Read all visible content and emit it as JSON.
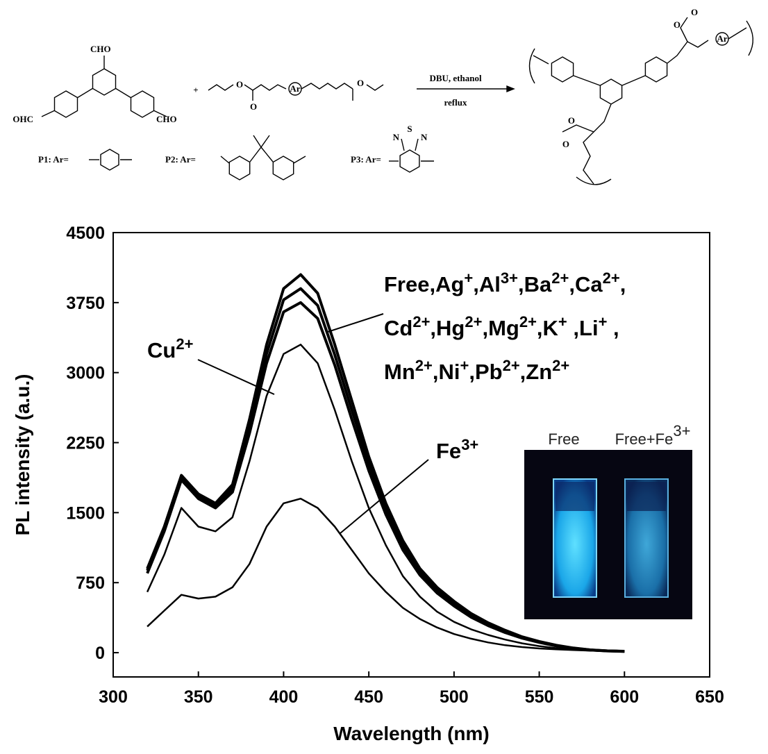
{
  "scheme": {
    "reagent_labels": [
      "CHO",
      "OHC",
      "CHO"
    ],
    "plus": "+",
    "ar": "Ar",
    "conditions": [
      "DBU, ethanol",
      "reflux"
    ],
    "variants": [
      "P1: Ar=",
      "P2: Ar=",
      "P3: Ar="
    ],
    "atoms": [
      "S",
      "N",
      "N",
      "O"
    ]
  },
  "chart_data": {
    "type": "line",
    "x_label": "Wavelength (nm)",
    "y_label": "PL intensity (a.u.)",
    "x": [
      320,
      330,
      340,
      350,
      360,
      370,
      380,
      390,
      400,
      410,
      420,
      430,
      440,
      450,
      460,
      470,
      480,
      490,
      500,
      510,
      520,
      530,
      540,
      550,
      560,
      570,
      580,
      590,
      600
    ],
    "series": [
      {
        "color": "#000000",
        "values": [
          900,
          1350,
          1900,
          1700,
          1600,
          1800,
          2500,
          3300,
          3900,
          4050,
          3850,
          3300,
          2700,
          2100,
          1600,
          1200,
          900,
          700,
          550,
          420,
          320,
          240,
          170,
          120,
          80,
          50,
          30,
          20,
          15
        ]
      },
      {
        "color": "#000000",
        "values": [
          880,
          1330,
          1880,
          1680,
          1580,
          1760,
          2420,
          3200,
          3780,
          3900,
          3720,
          3190,
          2600,
          2030,
          1540,
          1150,
          860,
          670,
          525,
          400,
          305,
          228,
          162,
          115,
          76,
          48,
          29,
          19,
          14
        ]
      },
      {
        "color": "#000000",
        "values": [
          850,
          1300,
          1850,
          1650,
          1550,
          1720,
          2350,
          3100,
          3650,
          3750,
          3580,
          3080,
          2500,
          1950,
          1480,
          1100,
          830,
          640,
          500,
          380,
          290,
          215,
          155,
          110,
          72,
          45,
          28,
          18,
          14
        ]
      },
      {
        "color": "#000000",
        "values": [
          650,
          1050,
          1550,
          1350,
          1300,
          1450,
          2050,
          2750,
          3200,
          3300,
          3100,
          2600,
          2050,
          1550,
          1150,
          820,
          600,
          440,
          330,
          250,
          190,
          140,
          100,
          70,
          48,
          32,
          22,
          15,
          12
        ]
      },
      {
        "color": "#000000",
        "values": [
          280,
          450,
          620,
          580,
          600,
          700,
          950,
          1350,
          1600,
          1650,
          1550,
          1350,
          1100,
          850,
          650,
          480,
          360,
          270,
          200,
          150,
          110,
          80,
          60,
          45,
          35,
          28,
          22,
          18,
          15
        ]
      }
    ],
    "xlim": [
      300,
      650
    ],
    "xticks": [
      300,
      350,
      400,
      450,
      500,
      550,
      600,
      650
    ],
    "ylim": [
      -260,
      4500
    ],
    "yticks": [
      0,
      750,
      1500,
      2250,
      3000,
      3750,
      4500
    ],
    "annotations": [
      {
        "lines": [
          [
            {
              "text": "Cu"
            },
            {
              "sup": "2+"
            }
          ]
        ]
      },
      {
        "lines": [
          [
            {
              "text": "Free,Ag"
            },
            {
              "sup": "+"
            },
            {
              "text": ",Al"
            },
            {
              "sup": "3+"
            },
            {
              "text": ",Ba"
            },
            {
              "sup": "2+"
            },
            {
              "text": ",Ca"
            },
            {
              "sup": "2+"
            },
            {
              "text": ","
            }
          ],
          [
            {
              "text": "Cd"
            },
            {
              "sup": "2+"
            },
            {
              "text": ",Hg"
            },
            {
              "sup": "2+"
            },
            {
              "text": ",Mg"
            },
            {
              "sup": "2+"
            },
            {
              "text": ",K"
            },
            {
              "sup": "+"
            },
            {
              "text": " ,Li"
            },
            {
              "sup": "+"
            },
            {
              "text": " ,"
            }
          ],
          [
            {
              "text": "Mn"
            },
            {
              "sup": "2+"
            },
            {
              "text": ",Ni"
            },
            {
              "sup": "+"
            },
            {
              "text": ",Pb"
            },
            {
              "sup": "2+"
            },
            {
              "text": ",Zn"
            },
            {
              "sup": "2+"
            }
          ]
        ]
      },
      {
        "lines": [
          [
            {
              "text": "Fe"
            },
            {
              "sup": "3+"
            }
          ]
        ]
      }
    ],
    "inset": {
      "labels": [
        [
          {
            "text": "Free"
          }
        ],
        [
          {
            "text": "Free+Fe"
          },
          {
            "sup": "3+"
          }
        ]
      ]
    }
  }
}
